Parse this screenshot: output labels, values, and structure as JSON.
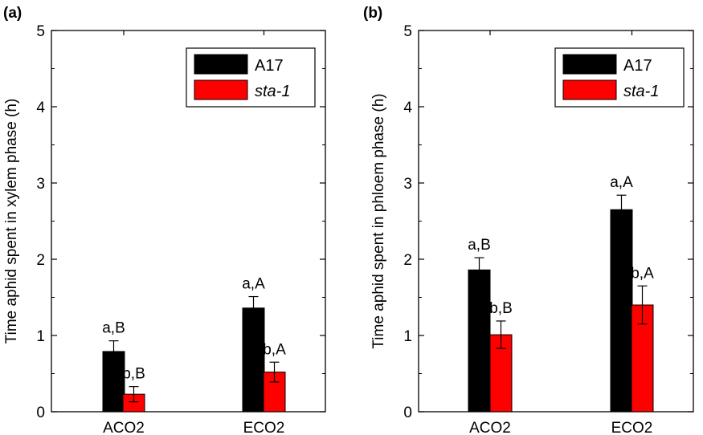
{
  "colors": {
    "A17": "#000000",
    "sta-1": "#ff0000",
    "axis": "#000000"
  },
  "chart_data": [
    {
      "panel_label": "(a)",
      "type": "bar",
      "categories": [
        "ACO2",
        "ECO2"
      ],
      "ylabel": "Time aphid spent in xylem phase (h)",
      "ylim": [
        0,
        5
      ],
      "yticks": [
        "0",
        "1",
        "2",
        "3",
        "4",
        "5"
      ],
      "legend_position": "top-right",
      "series": [
        {
          "name": "A17",
          "values": [
            0.79,
            1.36
          ],
          "errors": [
            0.14,
            0.15
          ],
          "labels": [
            "a,B",
            "a,A"
          ]
        },
        {
          "name": "sta-1",
          "values": [
            0.23,
            0.52
          ],
          "errors": [
            0.1,
            0.13
          ],
          "labels": [
            "b,B",
            "b,A"
          ]
        }
      ]
    },
    {
      "panel_label": "(b)",
      "type": "bar",
      "categories": [
        "ACO2",
        "ECO2"
      ],
      "ylabel": "Time aphid spent in phloem phase (h)",
      "ylim": [
        0,
        5
      ],
      "yticks": [
        "0",
        "1",
        "2",
        "3",
        "4",
        "5"
      ],
      "legend_position": "top-right",
      "series": [
        {
          "name": "A17",
          "values": [
            1.86,
            2.65
          ],
          "errors": [
            0.16,
            0.19
          ],
          "labels": [
            "a,B",
            "a,A"
          ]
        },
        {
          "name": "sta-1",
          "values": [
            1.01,
            1.4
          ],
          "errors": [
            0.18,
            0.25
          ],
          "labels": [
            "b,B",
            "b,A"
          ]
        }
      ]
    }
  ]
}
